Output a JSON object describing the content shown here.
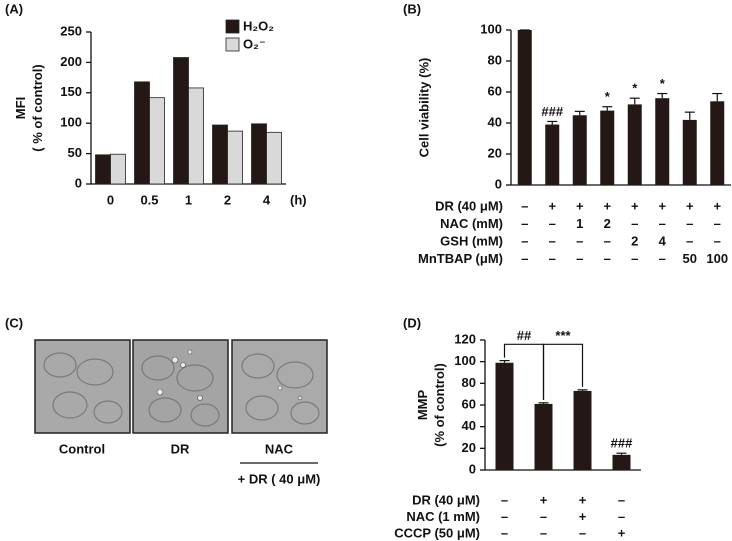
{
  "chart_data": [
    {
      "type": "bar",
      "panel_label": "(A)",
      "ylabel": [
        "MFI",
        "( % of control)"
      ],
      "xlabel": "(h)",
      "categories": [
        "0",
        "0.5",
        "1",
        "2",
        "4"
      ],
      "series": [
        {
          "name": "H₂O₂",
          "color": "#231815",
          "values": [
            48,
            168,
            208,
            97,
            99
          ]
        },
        {
          "name": "O₂⁻",
          "color": "#d9d9d9",
          "values": [
            49,
            142,
            158,
            87,
            85
          ]
        }
      ],
      "ylim": [
        0,
        250
      ],
      "yticks": [
        0,
        50,
        100,
        150,
        200,
        250
      ]
    },
    {
      "type": "bar",
      "panel_label": "(B)",
      "ylabel": "Cell viability (%)",
      "color": "#231815",
      "values": [
        100,
        39,
        45,
        48,
        52,
        56,
        42,
        54
      ],
      "errors": [
        0,
        2,
        2.5,
        2.5,
        4,
        3,
        5,
        5
      ],
      "marks": [
        null,
        "###",
        null,
        "*",
        "*",
        "*",
        null,
        null
      ],
      "conditions": [
        {
          "label": "DR (40 μM)",
          "values": [
            "–",
            "+",
            "+",
            "+",
            "+",
            "+",
            "+",
            "+"
          ]
        },
        {
          "label": "NAC (mM)",
          "values": [
            "–",
            "–",
            "1",
            "2",
            "–",
            "–",
            "–",
            "–"
          ]
        },
        {
          "label": "GSH (mM)",
          "values": [
            "–",
            "–",
            "–",
            "–",
            "2",
            "4",
            "–",
            "–"
          ]
        },
        {
          "label": "MnTBAP (μM)",
          "values": [
            "–",
            "–",
            "–",
            "–",
            "–",
            "–",
            "50",
            "100"
          ]
        }
      ],
      "ylim": [
        0,
        100
      ],
      "yticks": [
        0,
        20,
        40,
        60,
        80,
        100
      ]
    },
    {
      "type": "bar",
      "panel_label": "(D)",
      "ylabel": [
        "MMP",
        "(% of control)"
      ],
      "color": "#231815",
      "values": [
        99,
        61,
        73,
        14
      ],
      "errors": [
        2,
        1,
        1,
        1.5
      ],
      "marks": [
        null,
        null,
        null,
        "###"
      ],
      "comparisons": [
        {
          "pair": [
            0,
            1
          ],
          "level": 116,
          "label": "##"
        },
        {
          "pair": [
            1,
            2
          ],
          "level": 116,
          "label": "***"
        }
      ],
      "conditions": [
        {
          "label": "DR (40 μM)",
          "values": [
            "–",
            "+",
            "+",
            "–"
          ]
        },
        {
          "label": "NAC (1 mM)",
          "values": [
            "–",
            "–",
            "+",
            "–"
          ]
        },
        {
          "label": "CCCP (50 μM)",
          "values": [
            "–",
            "–",
            "–",
            "+"
          ]
        }
      ],
      "ylim": [
        0,
        120
      ],
      "yticks": [
        0,
        20,
        40,
        60,
        80,
        100,
        120
      ]
    }
  ],
  "image_panel": {
    "panel_label": "(C)",
    "captions": [
      "Control",
      "DR"
    ],
    "stacked_caption": [
      "NAC",
      "+ DR ( 40 μM)"
    ]
  }
}
